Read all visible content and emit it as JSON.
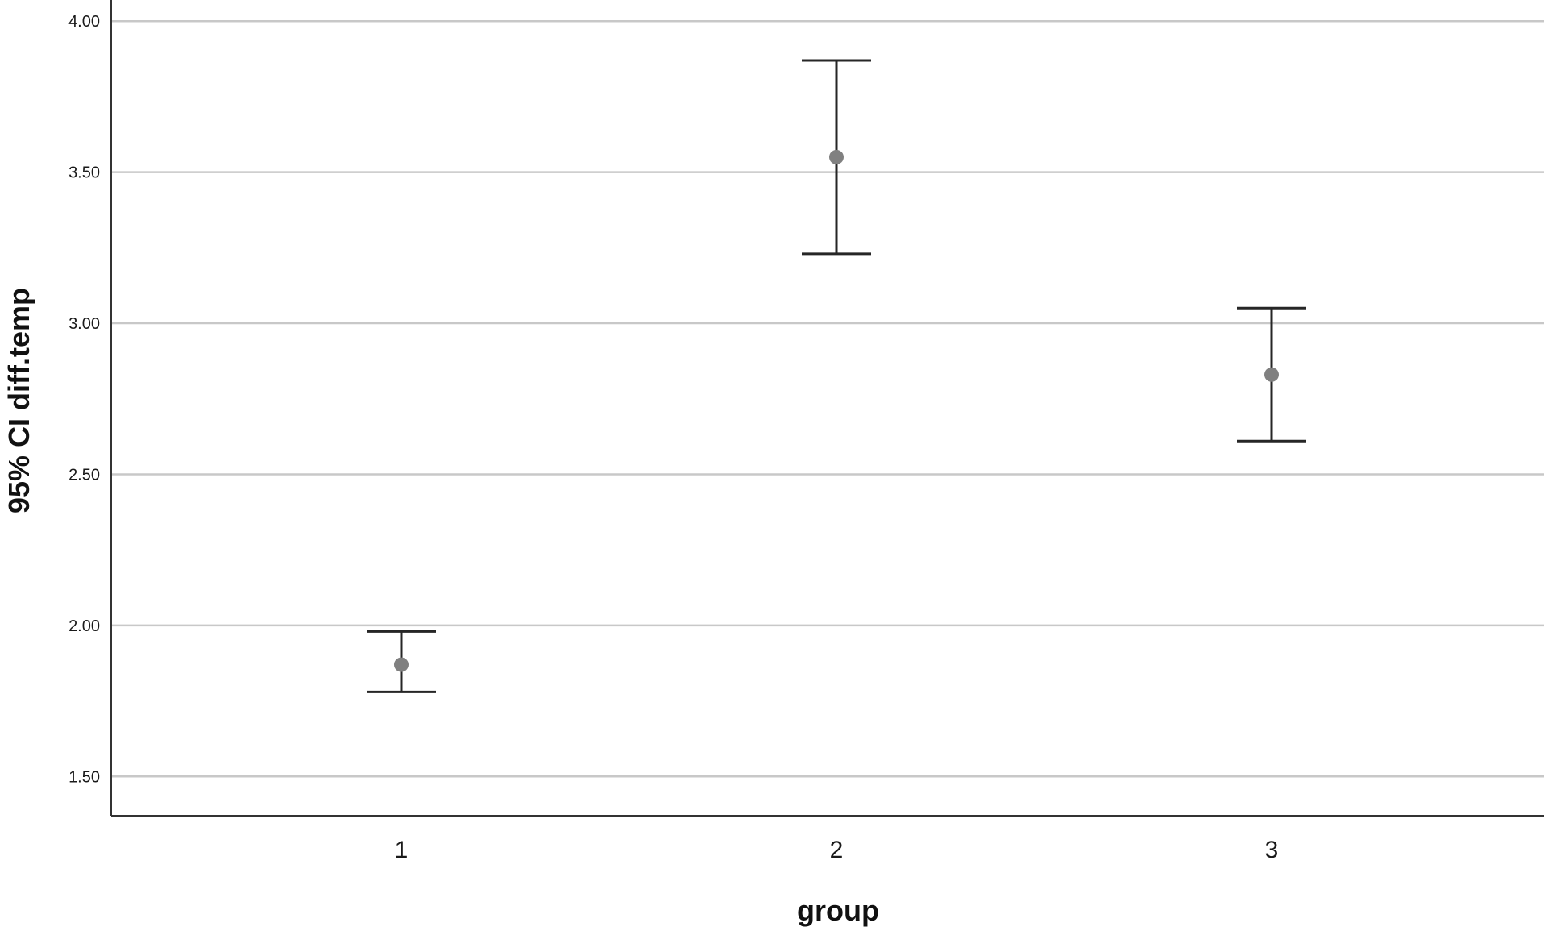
{
  "chart_data": {
    "type": "errorbar",
    "xlabel": "group",
    "ylabel": "95% CI diff.temp",
    "categories": [
      "1",
      "2",
      "3"
    ],
    "series": [
      {
        "values": [
          1.87,
          3.55,
          2.83
        ],
        "ci_lower": [
          1.78,
          3.23,
          2.61
        ],
        "ci_upper": [
          1.98,
          3.87,
          3.05
        ]
      }
    ],
    "ylim": [
      1.37,
      4.07
    ],
    "yticks": [
      1.5,
      2.0,
      2.5,
      3.0,
      3.5,
      4.0
    ],
    "ytick_labels": [
      "1.50",
      "2.00",
      "2.50",
      "3.00",
      "3.50",
      "4.00"
    ],
    "grid": true,
    "legend": "none",
    "colors": {
      "marker": "#808080",
      "errorbar": "#262626",
      "grid": "#c8c8c8",
      "axis": "#333333"
    }
  }
}
